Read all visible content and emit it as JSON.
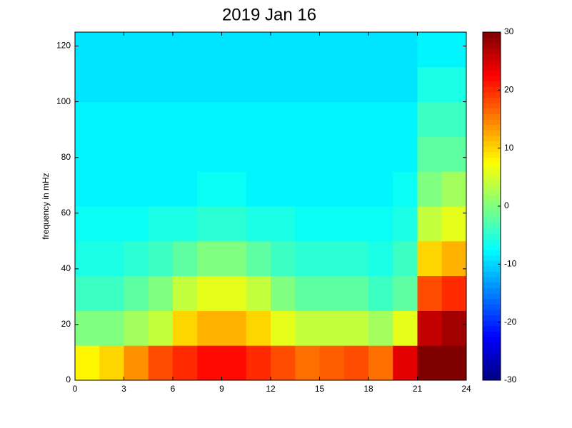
{
  "chart_data": {
    "type": "heatmap",
    "title": "2019 Jan 16",
    "y_label": "frequency in mHz",
    "colormap": "jet",
    "x": [
      0.75,
      2.25,
      3.75,
      5.25,
      6.75,
      8.25,
      9.75,
      11.25,
      12.75,
      14.25,
      15.75,
      17.25,
      18.75,
      20.25,
      21.75,
      23.25
    ],
    "y": [
      6.25,
      18.75,
      31.25,
      43.75,
      56.25,
      68.75,
      81.25,
      93.75,
      106.25,
      118.75
    ],
    "values": [
      [
        8,
        10,
        14,
        18,
        20,
        22,
        22,
        20,
        18,
        16,
        17,
        18,
        16,
        24,
        30,
        30
      ],
      [
        0,
        0,
        2,
        4,
        10,
        12,
        12,
        10,
        6,
        4,
        4,
        4,
        2,
        6,
        26,
        28
      ],
      [
        -4,
        -4,
        -2,
        0,
        4,
        6,
        6,
        4,
        0,
        -2,
        -2,
        -2,
        -4,
        -2,
        18,
        20
      ],
      [
        -6,
        -6,
        -5,
        -4,
        -2,
        0,
        0,
        -2,
        -4,
        -5,
        -5,
        -5,
        -6,
        -4,
        10,
        12
      ],
      [
        -7,
        -7,
        -7,
        -6,
        -6,
        -5,
        -5,
        -6,
        -6,
        -7,
        -7,
        -7,
        -7,
        -6,
        4,
        6
      ],
      [
        -8,
        -8,
        -8,
        -8,
        -8,
        -7,
        -7,
        -8,
        -8,
        -8,
        -8,
        -8,
        -8,
        -7,
        0,
        2
      ],
      [
        -8,
        -8,
        -8,
        -8,
        -8,
        -8,
        -8,
        -8,
        -8,
        -8,
        -8,
        -8,
        -8,
        -8,
        -2,
        -2
      ],
      [
        -8,
        -8,
        -8,
        -8,
        -8,
        -8,
        -8,
        -8,
        -8,
        -8,
        -8,
        -8,
        -8,
        -8,
        -4,
        -4
      ],
      [
        -9,
        -9,
        -9,
        -9,
        -9,
        -9,
        -9,
        -9,
        -9,
        -9,
        -9,
        -9,
        -9,
        -9,
        -6,
        -6
      ],
      [
        -9,
        -9,
        -9,
        -9,
        -9,
        -9,
        -9,
        -9,
        -9,
        -9,
        -9,
        -9,
        -9,
        -9,
        -8,
        -8
      ]
    ],
    "xlim": [
      0,
      24
    ],
    "xticks": [
      0,
      3,
      6,
      9,
      12,
      15,
      18,
      21,
      24
    ],
    "ylim": [
      0,
      125
    ],
    "yticks": [
      0,
      20,
      40,
      60,
      80,
      100,
      120
    ],
    "clim": [
      -30,
      30
    ],
    "cticks": [
      -30,
      -20,
      -10,
      0,
      10,
      20,
      30
    ]
  }
}
